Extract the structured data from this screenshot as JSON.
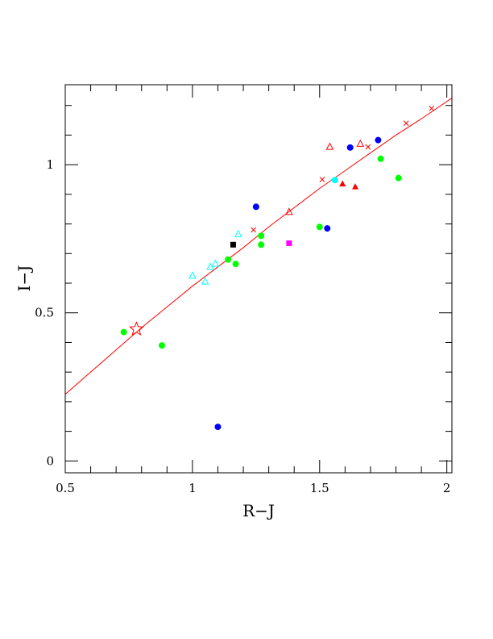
{
  "chart_data": {
    "type": "scatter",
    "xlabel": "R−J",
    "ylabel": "I−J",
    "xlim": [
      0.5,
      2.02
    ],
    "ylim": [
      -0.04,
      1.27
    ],
    "x_ticks": [
      {
        "value": 0.5,
        "label": "0.5"
      },
      {
        "value": 1.0,
        "label": "1"
      },
      {
        "value": 1.5,
        "label": "1.5"
      },
      {
        "value": 2.0,
        "label": "2"
      }
    ],
    "y_ticks": [
      {
        "value": 0.0,
        "label": "0"
      },
      {
        "value": 0.5,
        "label": "0.5"
      },
      {
        "value": 1.0,
        "label": "1"
      }
    ],
    "x_minor_step": 0.1,
    "y_minor_step": 0.1,
    "grid": false,
    "legend": "none",
    "fit_line": {
      "color": "#ff0000",
      "points": [
        [
          0.5,
          0.225
        ],
        [
          0.6,
          0.3
        ],
        [
          0.7,
          0.375
        ],
        [
          0.8,
          0.45
        ],
        [
          0.9,
          0.52
        ],
        [
          1.0,
          0.59
        ],
        [
          1.1,
          0.655
        ],
        [
          1.2,
          0.72
        ],
        [
          1.3,
          0.79
        ],
        [
          1.4,
          0.855
        ],
        [
          1.5,
          0.92
        ],
        [
          1.6,
          0.98
        ],
        [
          1.7,
          1.04
        ],
        [
          1.8,
          1.1
        ],
        [
          1.9,
          1.155
        ],
        [
          2.02,
          1.225
        ]
      ]
    },
    "series": [
      {
        "marker": "cross",
        "color": "#ff0000",
        "points": [
          [
            1.24,
            0.78
          ],
          [
            1.51,
            0.95
          ],
          [
            1.69,
            1.06
          ],
          [
            1.84,
            1.14
          ],
          [
            1.94,
            1.19
          ]
        ]
      },
      {
        "marker": "star",
        "color": "#ff0000",
        "points": [
          [
            0.78,
            0.445
          ]
        ]
      },
      {
        "marker": "open-triangle",
        "color": "#ff0000",
        "points": [
          [
            1.54,
            1.06
          ],
          [
            1.66,
            1.07
          ],
          [
            1.38,
            0.84
          ]
        ]
      },
      {
        "marker": "filled-triangle",
        "color": "#ff0000",
        "points": [
          [
            1.59,
            0.935
          ],
          [
            1.64,
            0.925
          ]
        ]
      },
      {
        "marker": "open-triangle",
        "color": "#00ffff",
        "points": [
          [
            1.0,
            0.625
          ],
          [
            1.05,
            0.605
          ],
          [
            1.07,
            0.655
          ],
          [
            1.09,
            0.665
          ],
          [
            1.18,
            0.765
          ]
        ]
      },
      {
        "marker": "filled-circle",
        "color": "#0000ff",
        "points": [
          [
            1.25,
            0.858
          ],
          [
            1.53,
            0.785
          ],
          [
            1.62,
            1.058
          ],
          [
            1.73,
            1.083
          ],
          [
            1.1,
            0.115
          ]
        ]
      },
      {
        "marker": "filled-circle",
        "color": "#00ffff",
        "points": [
          [
            1.56,
            0.948
          ]
        ]
      },
      {
        "marker": "filled-circle",
        "color": "#00ff00",
        "points": [
          [
            0.73,
            0.435
          ],
          [
            0.88,
            0.39
          ],
          [
            1.14,
            0.68
          ],
          [
            1.17,
            0.665
          ],
          [
            1.27,
            0.76
          ],
          [
            1.27,
            0.73
          ],
          [
            1.5,
            0.79
          ],
          [
            1.74,
            1.02
          ],
          [
            1.81,
            0.955
          ]
        ]
      },
      {
        "marker": "filled-square",
        "color": "#000000",
        "points": [
          [
            1.16,
            0.73
          ]
        ]
      },
      {
        "marker": "filled-square",
        "color": "#ff00ff",
        "points": [
          [
            1.38,
            0.735
          ]
        ]
      }
    ]
  }
}
